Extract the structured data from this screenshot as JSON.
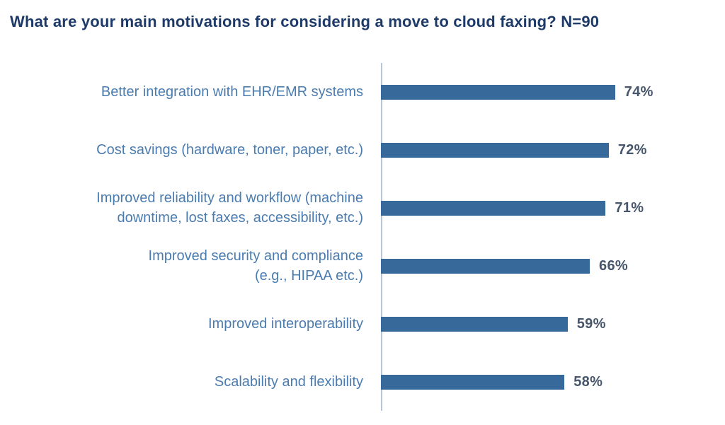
{
  "title": "What are your main motivations for considering a move to cloud faxing? N=90",
  "colors": {
    "bar": "#38699B",
    "label_text": "#4A7CB0",
    "title_text": "#1E3A68",
    "value_text": "#47566B",
    "axis_line": "#B6C5D7",
    "background": "#FFFFFF"
  },
  "chart_data": {
    "type": "bar",
    "orientation": "horizontal",
    "title": "What are your main motivations for considering a move to cloud faxing? N=90",
    "sample_size": "N=90",
    "categories": [
      "Better integration with EHR/EMR systems",
      "Cost savings (hardware, toner, paper, etc.)",
      "Improved reliability and workflow (machine downtime, lost faxes, accessibility, etc.)",
      "Improved security and compliance (e.g., HIPAA etc.)",
      "Improved interoperability",
      "Scalability and flexibility"
    ],
    "label_lines": [
      [
        "Better integration with EHR/EMR systems"
      ],
      [
        "Cost savings (hardware, toner, paper, etc.)"
      ],
      [
        "Improved reliability and workflow (machine",
        "downtime, lost faxes, accessibility, etc.)"
      ],
      [
        "Improved security and compliance",
        "(e.g., HIPAA etc.)"
      ],
      [
        "Improved interoperability"
      ],
      [
        "Scalability and flexibility"
      ]
    ],
    "values": [
      74,
      72,
      71,
      66,
      59,
      58
    ],
    "value_suffix": "%",
    "xlim": [
      0,
      100
    ],
    "grid": false,
    "legend": false,
    "data_labels": "end-of-bar"
  }
}
